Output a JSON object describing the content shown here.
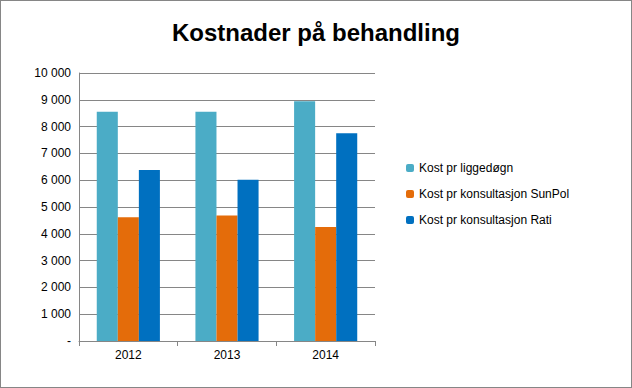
{
  "chart_data": {
    "type": "bar",
    "title": "Kostnader på behandling",
    "categories": [
      "2012",
      "2013",
      "2014"
    ],
    "series": [
      {
        "name": "Kost pr liggedøgn",
        "color": "#4bacc6",
        "values": [
          8550,
          8550,
          8950
        ]
      },
      {
        "name": "Kost pr konsultasjon SunPol",
        "color": "#e46c0a",
        "values": [
          4620,
          4680,
          4250
        ]
      },
      {
        "name": "Kost pr konsultasjon Rati",
        "color": "#0070c0",
        "values": [
          6380,
          6020,
          7750
        ]
      }
    ],
    "ylim": [
      0,
      10000
    ],
    "yticks": [
      {
        "value": 0,
        "label": "-"
      },
      {
        "value": 1000,
        "label": "1 000"
      },
      {
        "value": 2000,
        "label": "2 000"
      },
      {
        "value": 3000,
        "label": "3 000"
      },
      {
        "value": 4000,
        "label": "4 000"
      },
      {
        "value": 5000,
        "label": "5 000"
      },
      {
        "value": 6000,
        "label": "6 000"
      },
      {
        "value": 7000,
        "label": "7 000"
      },
      {
        "value": 8000,
        "label": "8 000"
      },
      {
        "value": 9000,
        "label": "9 000"
      },
      {
        "value": 10000,
        "label": "10 000"
      }
    ],
    "grid": true,
    "legend": "right"
  }
}
